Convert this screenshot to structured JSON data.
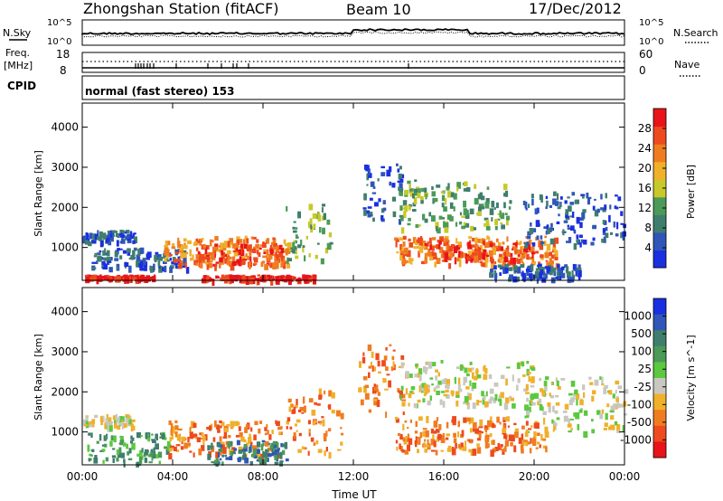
{
  "header": {
    "station_title": "Zhongshan Station (fitACF)",
    "beam": "Beam 10",
    "date": "17/Dec/2012"
  },
  "top_panels": {
    "nsky_label": "N.Sky",
    "nsearch_label": "N.Search",
    "noise_axis": [
      "10^5",
      "10^0"
    ],
    "freq_label": "Freq.",
    "freq_unit": "[MHz]",
    "freq_axis": [
      "18",
      "8"
    ],
    "nave_label": "Nave",
    "nave_axis": [
      "60",
      "0"
    ],
    "cpid_label": "CPID",
    "cpid_text": "normal (fast stereo) 153"
  },
  "chart_data": [
    {
      "type": "heatmap",
      "panel": "power",
      "ylabel": "Slant Range [km]",
      "xlabel": "",
      "x_ticks": [
        "00:00",
        "04:00",
        "08:00",
        "12:00",
        "16:00",
        "20:00",
        "00:00"
      ],
      "y_ticks": [
        1000,
        2000,
        3000,
        4000
      ],
      "ylim": [
        180,
        4600
      ],
      "xlim_hours": [
        0,
        24
      ],
      "colorbar": {
        "label": "Power [dB]",
        "ticks": [
          "4",
          "8",
          "12",
          "16",
          "20",
          "24",
          "28"
        ],
        "colors": [
          "#1a2fe0",
          "#2f56b8",
          "#3f7e6c",
          "#4b9a58",
          "#c8c82a",
          "#f0b02a",
          "#f07c20",
          "#ee4a1e",
          "#e8141a"
        ]
      },
      "regions": [
        {
          "t0": 0.1,
          "t1": 3.2,
          "r0": 250,
          "r1": 330,
          "level": 8
        },
        {
          "t0": 5.2,
          "t1": 10.2,
          "r0": 220,
          "r1": 330,
          "level": 8
        },
        {
          "t0": 0.0,
          "t1": 2.3,
          "r0": 1150,
          "r1": 1450,
          "level": 1
        },
        {
          "t0": 0.4,
          "t1": 4.6,
          "r0": 480,
          "r1": 1000,
          "level": 1
        },
        {
          "t0": 3.6,
          "t1": 9.2,
          "r0": 600,
          "r1": 1300,
          "level": 6
        },
        {
          "t0": 5.0,
          "t1": 8.8,
          "r0": 550,
          "r1": 1100,
          "level": 7
        },
        {
          "t0": 9.0,
          "t1": 11.0,
          "r0": 700,
          "r1": 2100,
          "level": 3
        },
        {
          "t0": 12.4,
          "t1": 14.2,
          "r0": 1700,
          "r1": 3100,
          "level": 1
        },
        {
          "t0": 14.0,
          "t1": 19.0,
          "r0": 1500,
          "r1": 2700,
          "level": 3
        },
        {
          "t0": 13.8,
          "t1": 21.0,
          "r0": 600,
          "r1": 1300,
          "level": 6
        },
        {
          "t0": 15.0,
          "t1": 20.0,
          "r0": 700,
          "r1": 1200,
          "level": 7
        },
        {
          "t0": 19.5,
          "t1": 24.0,
          "r0": 1100,
          "r1": 2400,
          "level": 1
        },
        {
          "t0": 18.0,
          "t1": 22.0,
          "r0": 250,
          "r1": 600,
          "level": 1
        }
      ]
    },
    {
      "type": "heatmap",
      "panel": "velocity",
      "ylabel": "Slant Range [km]",
      "xlabel": "Time UT",
      "x_ticks": [
        "00:00",
        "04:00",
        "08:00",
        "12:00",
        "16:00",
        "20:00",
        "00:00"
      ],
      "y_ticks": [
        1000,
        2000,
        3000,
        4000
      ],
      "ylim": [
        180,
        4600
      ],
      "xlim_hours": [
        0,
        24
      ],
      "colorbar": {
        "label": "Velocity [m s^-1]",
        "ticks": [
          "1000",
          "500",
          "100",
          "25",
          "-25",
          "-100",
          "-500",
          "-1000"
        ],
        "colors": [
          "#1a2fe0",
          "#2f56b8",
          "#3f7e6c",
          "#4b9a58",
          "#5cc840",
          "#c8c8c0",
          "#f0b02a",
          "#f07c20",
          "#ee4a1e",
          "#e8141a"
        ]
      },
      "regions": [
        {
          "t0": 0.0,
          "t1": 2.2,
          "r0": 1150,
          "r1": 1450,
          "level": 5
        },
        {
          "t0": 0.2,
          "t1": 3.8,
          "r0": 250,
          "r1": 1000,
          "level": 3
        },
        {
          "t0": 3.8,
          "t1": 8.8,
          "r0": 450,
          "r1": 1300,
          "level": 7
        },
        {
          "t0": 5.5,
          "t1": 9.0,
          "r0": 250,
          "r1": 800,
          "level": 2
        },
        {
          "t0": 9.0,
          "t1": 11.5,
          "r0": 500,
          "r1": 2100,
          "level": 7
        },
        {
          "t0": 12.2,
          "t1": 14.2,
          "r0": 1500,
          "r1": 3200,
          "level": 7
        },
        {
          "t0": 14.0,
          "t1": 20.0,
          "r0": 1700,
          "r1": 2800,
          "level": 5
        },
        {
          "t0": 13.8,
          "t1": 20.5,
          "r0": 550,
          "r1": 1400,
          "level": 7
        },
        {
          "t0": 19.5,
          "t1": 24.0,
          "r0": 1000,
          "r1": 2400,
          "level": 5
        }
      ]
    }
  ]
}
